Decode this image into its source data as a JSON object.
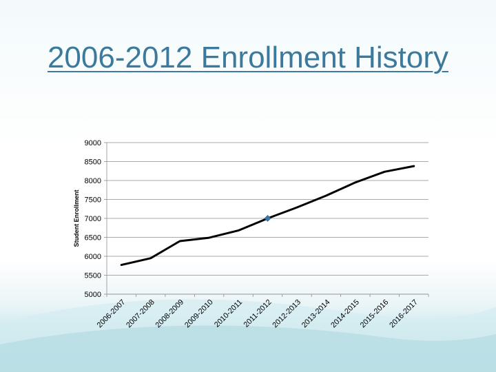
{
  "slide": {
    "title": "2006-2012 Enrollment History"
  },
  "colors": {
    "title": "#3b7a9c",
    "line": "#000000",
    "marker": "#3a78a8",
    "grid": "#8c8c8c"
  },
  "chart_data": {
    "type": "line",
    "title": "",
    "xlabel": "",
    "ylabel": "Student Enrollment",
    "categories": [
      "2006-2007",
      "2007-2008",
      "2008-2009",
      "2009-2010",
      "2010-2011",
      "2011-2012",
      "2012-2013",
      "2013-2014",
      "2014-2015",
      "2015-2016",
      "2016-2017"
    ],
    "series": [
      {
        "values": [
          5770,
          5950,
          6400,
          6490,
          6680,
          7000,
          7290,
          7600,
          7950,
          8230,
          8380
        ]
      }
    ],
    "highlight_marker": {
      "category": "2011-2012",
      "value": 7000,
      "shape": "diamond"
    },
    "ylim": [
      5000,
      9000
    ],
    "yticks": [
      5000,
      5500,
      6000,
      6500,
      7000,
      7500,
      8000,
      8500,
      9000
    ],
    "grid": true,
    "legend": "none"
  }
}
